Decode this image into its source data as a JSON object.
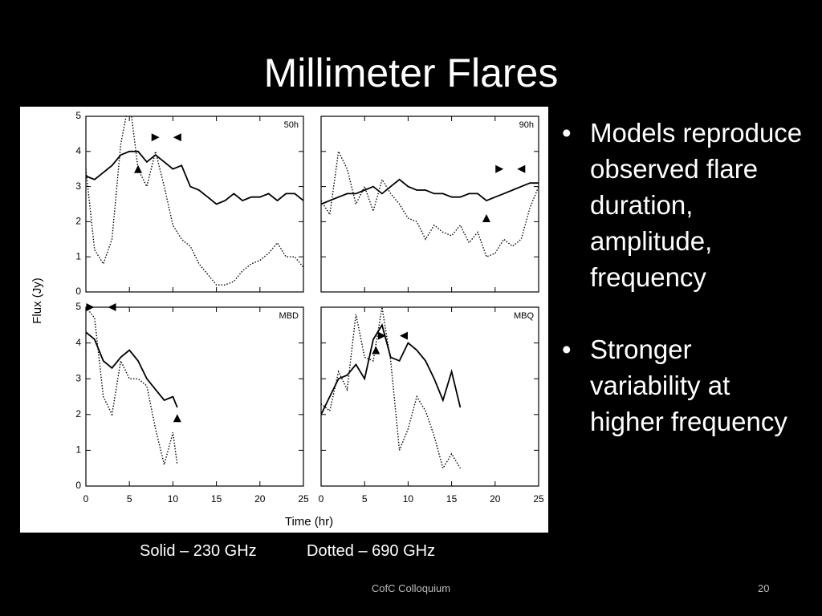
{
  "title": "Millimeter Flares",
  "bullets": [
    "Models reproduce observed flare duration, amplitude, frequency",
    "Stronger variability at higher frequency"
  ],
  "caption": [
    "Solid – 230 GHz",
    "Dotted – 690 GHz"
  ],
  "footer": "CofC Colloquium",
  "page_number": "20",
  "axis_labels": {
    "y": "Flux (Jy)",
    "x": "Time (hr)"
  },
  "chart_data": [
    {
      "type": "line",
      "label": "50h",
      "xlim": [
        0,
        25
      ],
      "ylim": [
        0,
        5
      ],
      "xticks": [
        0,
        5,
        10,
        15,
        20,
        25
      ],
      "yticks": [
        0,
        1,
        2,
        3,
        4,
        5
      ],
      "xtick_labels": false,
      "ytick_labels": true,
      "x": [
        0,
        1,
        2,
        3,
        4,
        5,
        6,
        7,
        8,
        9,
        10,
        11,
        12,
        13,
        14,
        15,
        16,
        17,
        18,
        19,
        20,
        21,
        22,
        23,
        24,
        25
      ],
      "series": [
        {
          "style": "solid",
          "color": "#000000",
          "values": [
            3.3,
            3.2,
            3.4,
            3.6,
            3.9,
            4.0,
            4.0,
            3.7,
            3.9,
            3.7,
            3.5,
            3.6,
            3.0,
            2.9,
            2.7,
            2.5,
            2.6,
            2.8,
            2.6,
            2.7,
            2.7,
            2.8,
            2.6,
            2.8,
            2.8,
            2.6
          ]
        },
        {
          "style": "dotted",
          "color": "#000000",
          "values": [
            3.5,
            1.2,
            0.8,
            1.5,
            4.2,
            5.5,
            3.5,
            3.0,
            4.0,
            3.0,
            1.9,
            1.5,
            1.3,
            0.8,
            0.5,
            0.2,
            0.2,
            0.3,
            0.6,
            0.8,
            0.9,
            1.1,
            1.4,
            1.0,
            1.0,
            0.7
          ]
        }
      ],
      "markers": [
        {
          "shape": "up",
          "x": 6,
          "y": 3.5
        },
        {
          "shape": "right",
          "x": 8,
          "y": 4.4
        },
        {
          "shape": "left",
          "x": 10.5,
          "y": 4.4
        }
      ]
    },
    {
      "type": "line",
      "label": "90h",
      "xlim": [
        0,
        25
      ],
      "ylim": [
        0,
        5
      ],
      "xticks": [
        0,
        5,
        10,
        15,
        20,
        25
      ],
      "yticks": [
        0,
        1,
        2,
        3,
        4,
        5
      ],
      "xtick_labels": false,
      "ytick_labels": false,
      "x": [
        0,
        1,
        2,
        3,
        4,
        5,
        6,
        7,
        8,
        9,
        10,
        11,
        12,
        13,
        14,
        15,
        16,
        17,
        18,
        19,
        20,
        21,
        22,
        23,
        24,
        25
      ],
      "series": [
        {
          "style": "solid",
          "color": "#000000",
          "values": [
            2.5,
            2.6,
            2.7,
            2.8,
            2.8,
            2.9,
            3.0,
            2.8,
            3.0,
            3.2,
            3.0,
            2.9,
            2.9,
            2.8,
            2.8,
            2.7,
            2.7,
            2.8,
            2.8,
            2.6,
            2.7,
            2.8,
            2.9,
            3.0,
            3.1,
            3.1
          ]
        },
        {
          "style": "dotted",
          "color": "#000000",
          "values": [
            2.6,
            2.2,
            4.0,
            3.5,
            2.5,
            3.0,
            2.3,
            3.2,
            2.8,
            2.5,
            2.1,
            2.0,
            1.5,
            1.9,
            1.7,
            1.6,
            1.9,
            1.4,
            1.7,
            1.0,
            1.1,
            1.5,
            1.3,
            1.5,
            2.4,
            3.0
          ]
        }
      ],
      "markers": [
        {
          "shape": "right",
          "x": 20.5,
          "y": 3.5
        },
        {
          "shape": "left",
          "x": 23,
          "y": 3.5
        },
        {
          "shape": "up",
          "x": 19,
          "y": 2.1
        }
      ]
    },
    {
      "type": "line",
      "label": "MBD",
      "xlim": [
        0,
        25
      ],
      "ylim": [
        0,
        5
      ],
      "xticks": [
        0,
        5,
        10,
        15,
        20,
        25
      ],
      "yticks": [
        0,
        1,
        2,
        3,
        4,
        5
      ],
      "xtick_labels": true,
      "ytick_labels": true,
      "x": [
        0,
        1,
        2,
        3,
        4,
        5,
        6,
        7,
        8,
        9,
        10,
        10.5
      ],
      "series": [
        {
          "style": "solid",
          "color": "#000000",
          "values": [
            4.3,
            4.1,
            3.5,
            3.3,
            3.6,
            3.8,
            3.5,
            3.0,
            2.7,
            2.4,
            2.5,
            2.2
          ]
        },
        {
          "style": "dotted",
          "color": "#000000",
          "values": [
            5.0,
            4.7,
            2.5,
            2.0,
            3.5,
            3.0,
            3.0,
            2.8,
            1.6,
            0.6,
            1.5,
            0.6
          ]
        }
      ],
      "markers": [
        {
          "shape": "right",
          "x": 0.5,
          "y": 5.0
        },
        {
          "shape": "left",
          "x": 3,
          "y": 5.0
        },
        {
          "shape": "up",
          "x": 10.5,
          "y": 1.9
        }
      ]
    },
    {
      "type": "line",
      "label": "MBQ",
      "xlim": [
        0,
        25
      ],
      "ylim": [
        0,
        5
      ],
      "xticks": [
        0,
        5,
        10,
        15,
        20,
        25
      ],
      "yticks": [
        0,
        1,
        2,
        3,
        4,
        5
      ],
      "xtick_labels": true,
      "ytick_labels": false,
      "x": [
        0,
        1,
        2,
        3,
        4,
        5,
        6,
        7,
        8,
        9,
        10,
        11,
        12,
        13,
        14,
        15,
        16
      ],
      "series": [
        {
          "style": "solid",
          "color": "#000000",
          "values": [
            2.0,
            2.5,
            3.0,
            3.1,
            3.4,
            3.0,
            4.1,
            4.5,
            3.6,
            3.5,
            4.0,
            3.8,
            3.5,
            3.0,
            2.4,
            3.2,
            2.2
          ]
        },
        {
          "style": "dotted",
          "color": "#000000",
          "values": [
            2.3,
            2.1,
            3.2,
            2.7,
            4.8,
            3.6,
            3.5,
            5.0,
            3.5,
            1.0,
            1.6,
            2.5,
            2.1,
            1.4,
            0.5,
            0.9,
            0.5
          ]
        }
      ],
      "markers": [
        {
          "shape": "up",
          "x": 6.3,
          "y": 3.8
        },
        {
          "shape": "right",
          "x": 7,
          "y": 4.2
        },
        {
          "shape": "left",
          "x": 9.5,
          "y": 4.2
        }
      ]
    }
  ]
}
